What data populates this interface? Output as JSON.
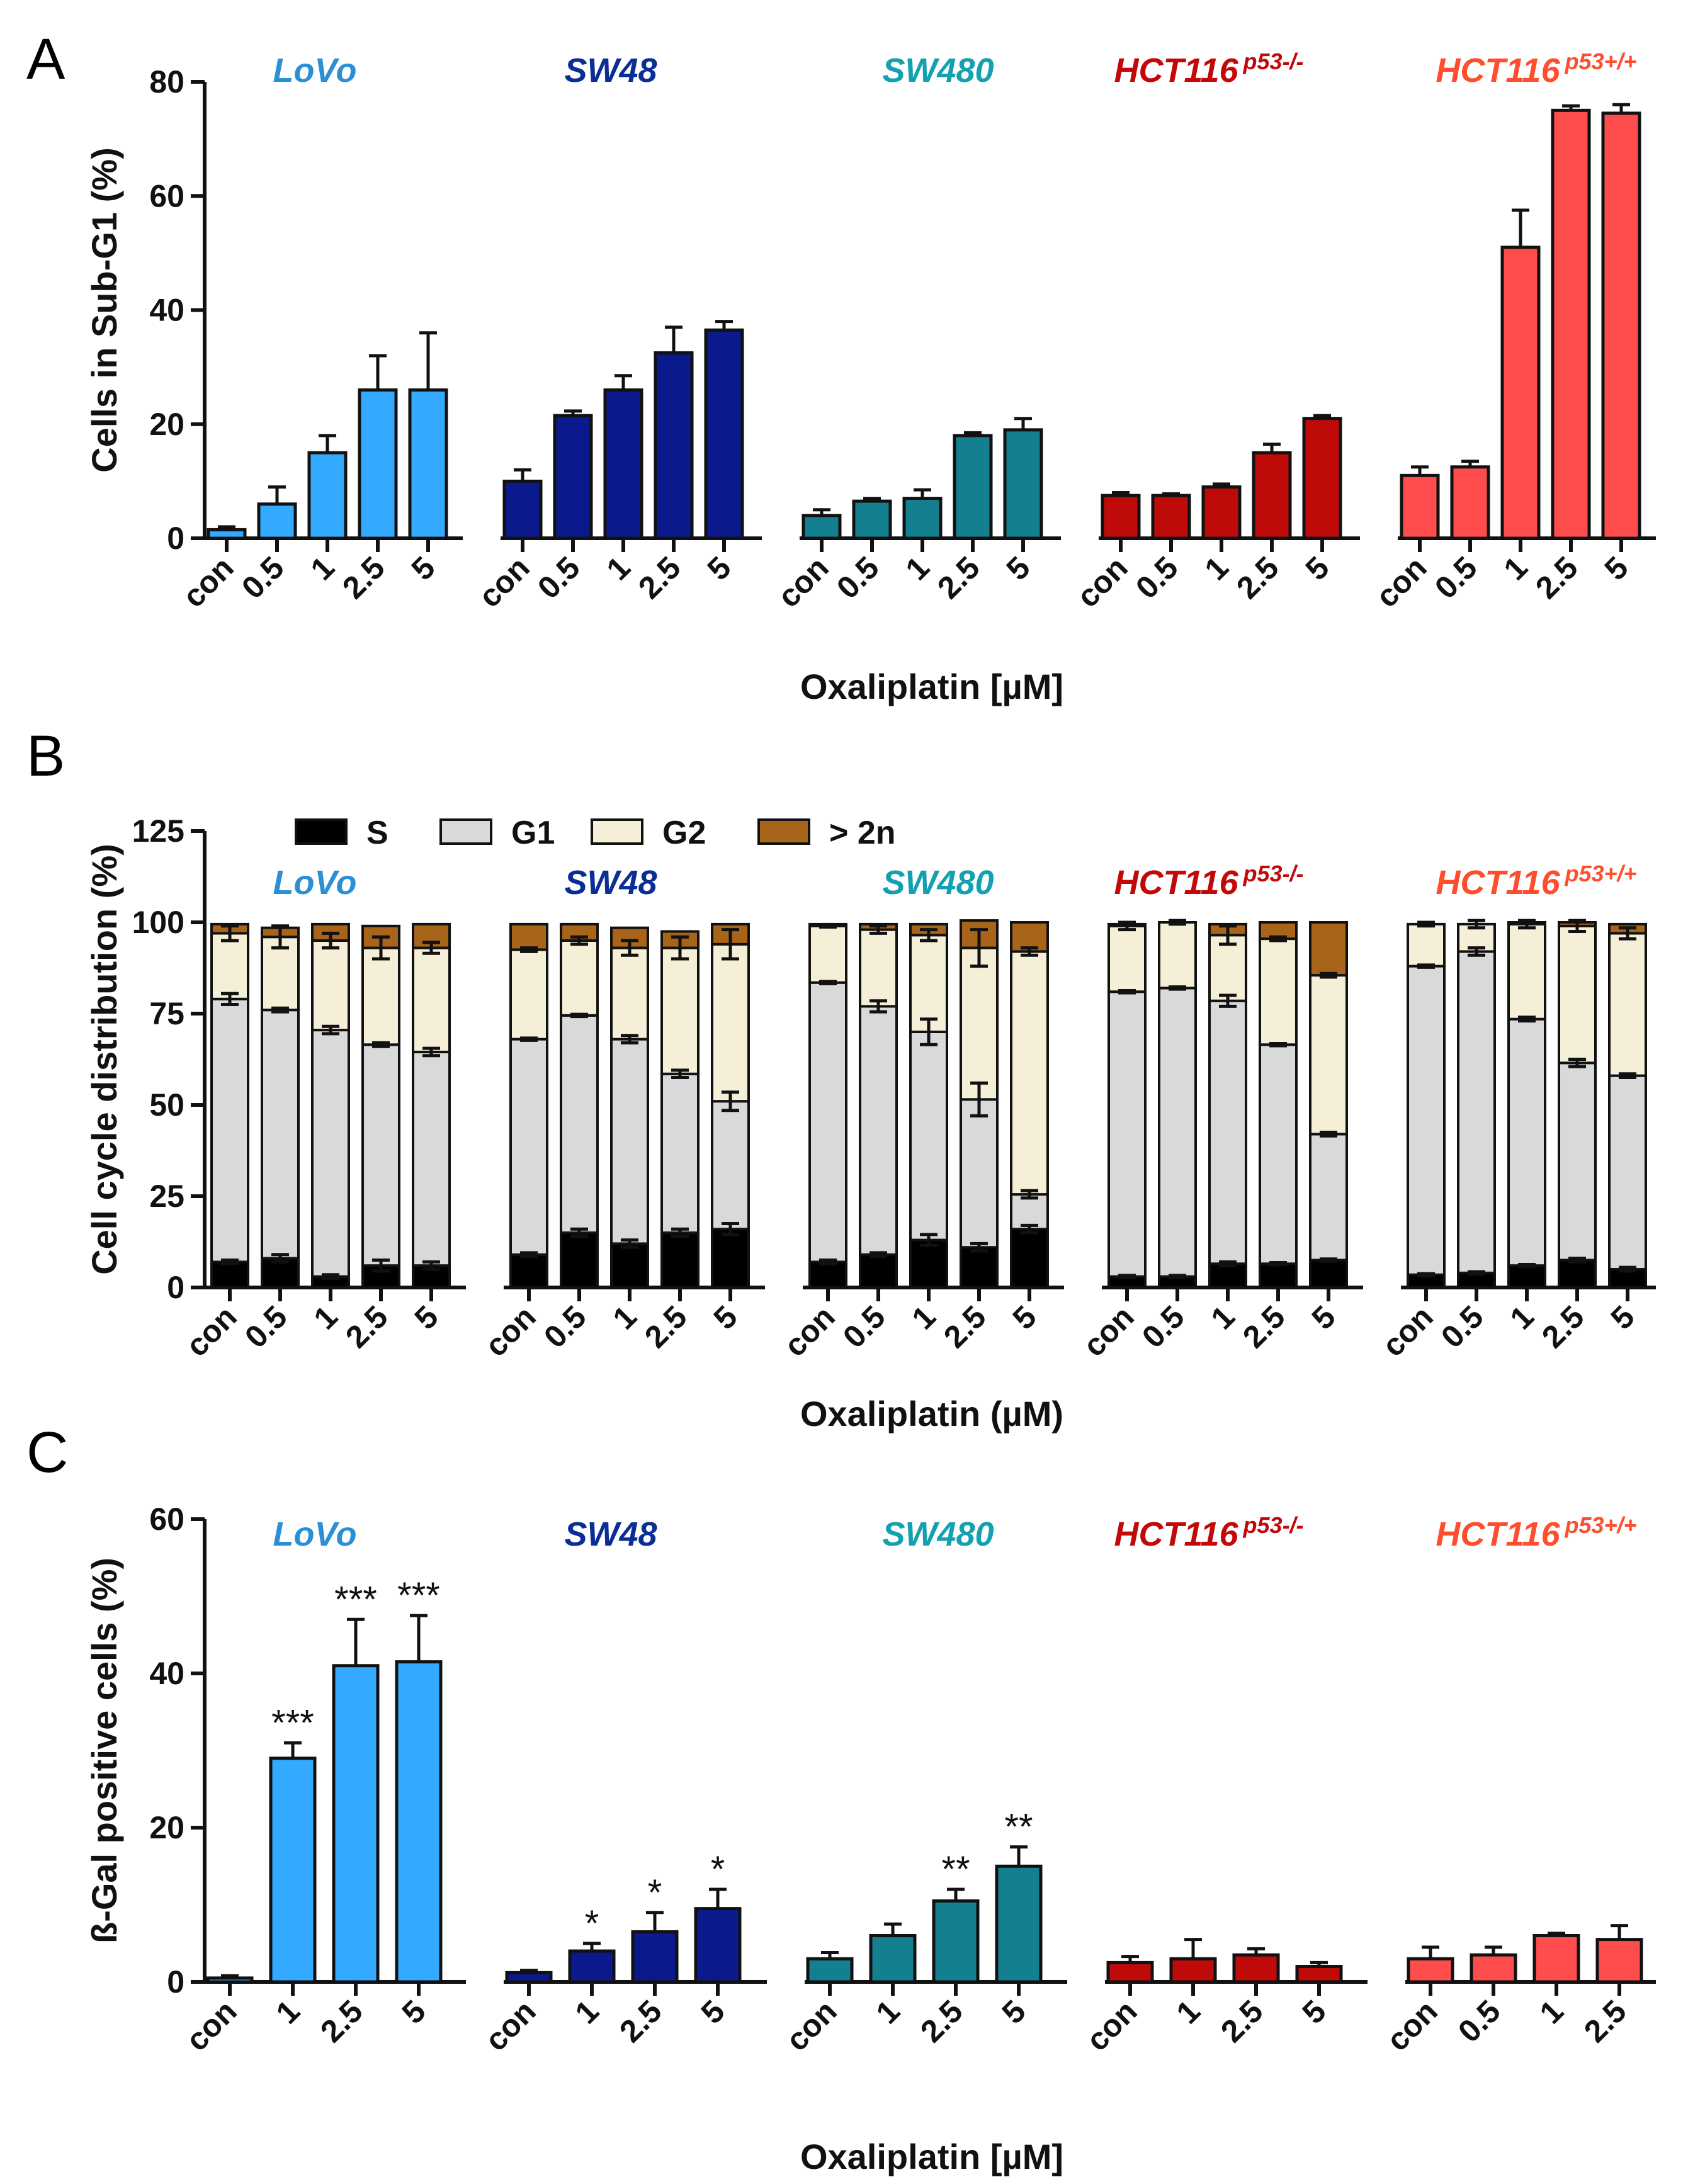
{
  "colors": {
    "LoVo": "#33AAFF",
    "SW48": "#0A1A8C",
    "SW480": "#137F8F",
    "HCT116 p53-/-": "#BF0A0A",
    "HCT116 p53+/+": "#FF4D4D",
    "label_LoVo": "#2B8FD6",
    "label_SW48": "#0A2E96",
    "label_SW480": "#13A0B0",
    "label_HCT116 p53-/-": "#C20808",
    "label_HCT116 p53+/+": "#FF4D2E",
    "S": "#000000",
    "G1": "#D9D9D9",
    "G2": "#F5EFD8",
    "gt2n": "#A86418"
  },
  "chart_data": [
    {
      "panel": "A",
      "type": "bar",
      "ylabel": "Cells in Sub-G1 (%)",
      "xlabel": "Oxaliplatin [µM]",
      "ylim": [
        0,
        80
      ],
      "yticks": [
        "0",
        "20",
        "40",
        "60",
        "80"
      ],
      "groups": [
        {
          "name": "LoVo",
          "sup": "",
          "categories": [
            "con",
            "0.5",
            "1",
            "2.5",
            "5"
          ],
          "values": [
            1.5,
            6,
            15,
            26,
            26
          ],
          "errors": [
            0.5,
            3,
            3,
            6,
            10
          ]
        },
        {
          "name": "SW48",
          "sup": "",
          "categories": [
            "con",
            "0.5",
            "1",
            "2.5",
            "5"
          ],
          "values": [
            10,
            21.5,
            26,
            32.5,
            36.5
          ],
          "errors": [
            2,
            0.8,
            2.5,
            4.5,
            1.5
          ]
        },
        {
          "name": "SW480",
          "sup": "",
          "categories": [
            "con",
            "0.5",
            "1",
            "2.5",
            "5"
          ],
          "values": [
            4,
            6.5,
            7,
            18,
            19
          ],
          "errors": [
            1,
            0.5,
            1.5,
            0.5,
            2
          ]
        },
        {
          "name": "HCT116",
          "sup": "p53-/-",
          "categories": [
            "con",
            "0.5",
            "1",
            "2.5",
            "5"
          ],
          "values": [
            7.5,
            7.5,
            9,
            15,
            21
          ],
          "errors": [
            0.5,
            0.3,
            0.5,
            1.5,
            0.5
          ]
        },
        {
          "name": "HCT116",
          "sup": "p53+/+",
          "categories": [
            "con",
            "0.5",
            "1",
            "2.5",
            "5"
          ],
          "values": [
            11,
            12.5,
            51,
            75,
            74.5
          ],
          "errors": [
            1.5,
            1,
            6.5,
            0.8,
            1.5
          ]
        }
      ]
    },
    {
      "panel": "B",
      "type": "stacked-bar",
      "ylabel": "Cell cycle distribution (%)",
      "xlabel": "Oxaliplatin (µM)",
      "ylim": [
        0,
        125
      ],
      "yticks": [
        "0",
        "25",
        "50",
        "75",
        "100",
        "125"
      ],
      "legend": [
        "S",
        "G1",
        "G2",
        "> 2n"
      ],
      "groups": [
        {
          "name": "LoVo",
          "sup": "",
          "categories": [
            "con",
            "0.5",
            "1",
            "2.5",
            "5"
          ],
          "S": [
            7,
            8,
            3,
            6,
            6
          ],
          "G1top": [
            79,
            76,
            70.5,
            66.5,
            64.5
          ],
          "G2top": [
            97,
            96,
            95,
            93,
            93
          ],
          "total": [
            99.5,
            98.5,
            99.5,
            99,
            99.5
          ],
          "G1err": [
            1.5,
            0.5,
            1,
            0.5,
            1
          ],
          "G2err": [
            2,
            3,
            2,
            3,
            1.5
          ],
          "Serr": [
            0.5,
            1,
            0.5,
            1.5,
            1
          ]
        },
        {
          "name": "SW48",
          "sup": "",
          "categories": [
            "con",
            "0.5",
            "1",
            "2.5",
            "5"
          ],
          "S": [
            9,
            15,
            12,
            15,
            16
          ],
          "G1top": [
            68,
            74.5,
            68,
            58.5,
            51
          ],
          "G2top": [
            92.5,
            95,
            93,
            93,
            94
          ],
          "total": [
            99.5,
            99.5,
            98.5,
            97.5,
            99.5
          ],
          "G1err": [
            0.3,
            0.3,
            1,
            1,
            2.5
          ],
          "G2err": [
            0.5,
            1,
            2,
            3,
            4
          ],
          "Serr": [
            0.5,
            1,
            1,
            1,
            1.5
          ]
        },
        {
          "name": "SW480",
          "sup": "",
          "categories": [
            "con",
            "0.5",
            "1",
            "2.5",
            "5"
          ],
          "S": [
            7,
            9,
            13,
            11,
            16
          ],
          "G1top": [
            83.5,
            77,
            70,
            51.5,
            25.5
          ],
          "G2top": [
            99,
            98,
            96.5,
            93,
            92
          ],
          "total": [
            99.5,
            99.5,
            99.5,
            100.5,
            100
          ],
          "G1err": [
            0.3,
            1.5,
            3.5,
            4.5,
            1
          ],
          "G2err": [
            0.3,
            1,
            1.5,
            5,
            1
          ],
          "Serr": [
            0.5,
            0.5,
            1.5,
            1,
            1
          ]
        },
        {
          "name": "HCT116",
          "sup": "p53-/-",
          "categories": [
            "con",
            "0.5",
            "1",
            "2.5",
            "5"
          ],
          "S": [
            3,
            3,
            6.5,
            6.5,
            7.5
          ],
          "G1top": [
            81,
            82,
            78.5,
            66.5,
            42
          ],
          "G2top": [
            99,
            100,
            96.5,
            95.5,
            85.5
          ],
          "total": [
            99.5,
            100,
            99.5,
            100,
            100
          ],
          "G1err": [
            0.3,
            0.3,
            1.5,
            0.3,
            0.5
          ],
          "G2err": [
            1,
            0.5,
            2.5,
            0.5,
            0.5
          ],
          "Serr": [
            0.3,
            0.3,
            0.5,
            0.3,
            0.3
          ]
        },
        {
          "name": "HCT116",
          "sup": "p53+/+",
          "categories": [
            "con",
            "0.5",
            "1",
            "2.5",
            "5"
          ],
          "S": [
            3.5,
            4,
            6,
            7.5,
            5
          ],
          "G1top": [
            88,
            92,
            73.5,
            61.5,
            58
          ],
          "G2top": [
            99.5,
            99.5,
            99.5,
            99,
            97
          ],
          "total": [
            99.5,
            99.5,
            100,
            100,
            99.5
          ],
          "G1err": [
            0.3,
            1,
            0.5,
            1,
            0.5
          ],
          "G2err": [
            0.5,
            1,
            1,
            1.5,
            1.5
          ],
          "Serr": [
            0.3,
            0.3,
            0.3,
            0.5,
            0.5
          ]
        }
      ]
    },
    {
      "panel": "C",
      "type": "bar",
      "ylabel": "ß-Gal positive cells (%)",
      "xlabel": "Oxaliplatin [µM]",
      "ylim": [
        0,
        60
      ],
      "yticks": [
        "0",
        "20",
        "40",
        "60"
      ],
      "groups": [
        {
          "name": "LoVo",
          "sup": "",
          "categories": [
            "con",
            "1",
            "2.5",
            "5"
          ],
          "values": [
            0.5,
            29,
            41,
            41.5
          ],
          "errors": [
            0.3,
            2,
            6,
            6
          ],
          "stars": [
            "",
            "***",
            "***",
            "***"
          ]
        },
        {
          "name": "SW48",
          "sup": "",
          "categories": [
            "con",
            "1",
            "2.5",
            "5"
          ],
          "values": [
            1.2,
            4,
            6.5,
            9.5
          ],
          "errors": [
            0.3,
            1,
            2.5,
            2.5
          ],
          "stars": [
            "",
            "*",
            "*",
            "*"
          ]
        },
        {
          "name": "SW480",
          "sup": "",
          "categories": [
            "con",
            "1",
            "2.5",
            "5"
          ],
          "values": [
            3,
            6,
            10.5,
            15
          ],
          "errors": [
            0.8,
            1.5,
            1.5,
            2.5
          ],
          "stars": [
            "",
            "",
            "**",
            "**"
          ]
        },
        {
          "name": "HCT116",
          "sup": "p53-/-",
          "categories": [
            "con",
            "1",
            "2.5",
            "5"
          ],
          "values": [
            2.5,
            3,
            3.5,
            2
          ],
          "errors": [
            0.8,
            2.5,
            0.8,
            0.5
          ],
          "stars": [
            "",
            "",
            "",
            ""
          ]
        },
        {
          "name": "HCT116",
          "sup": "p53+/+",
          "categories": [
            "con",
            "0.5",
            "1",
            "2.5"
          ],
          "values": [
            3,
            3.5,
            6,
            5.5
          ],
          "errors": [
            1.5,
            1,
            0.3,
            1.8
          ],
          "stars": [
            "",
            "",
            "",
            ""
          ]
        }
      ]
    }
  ],
  "panels": {
    "A": "A",
    "B": "B",
    "C": "C"
  }
}
